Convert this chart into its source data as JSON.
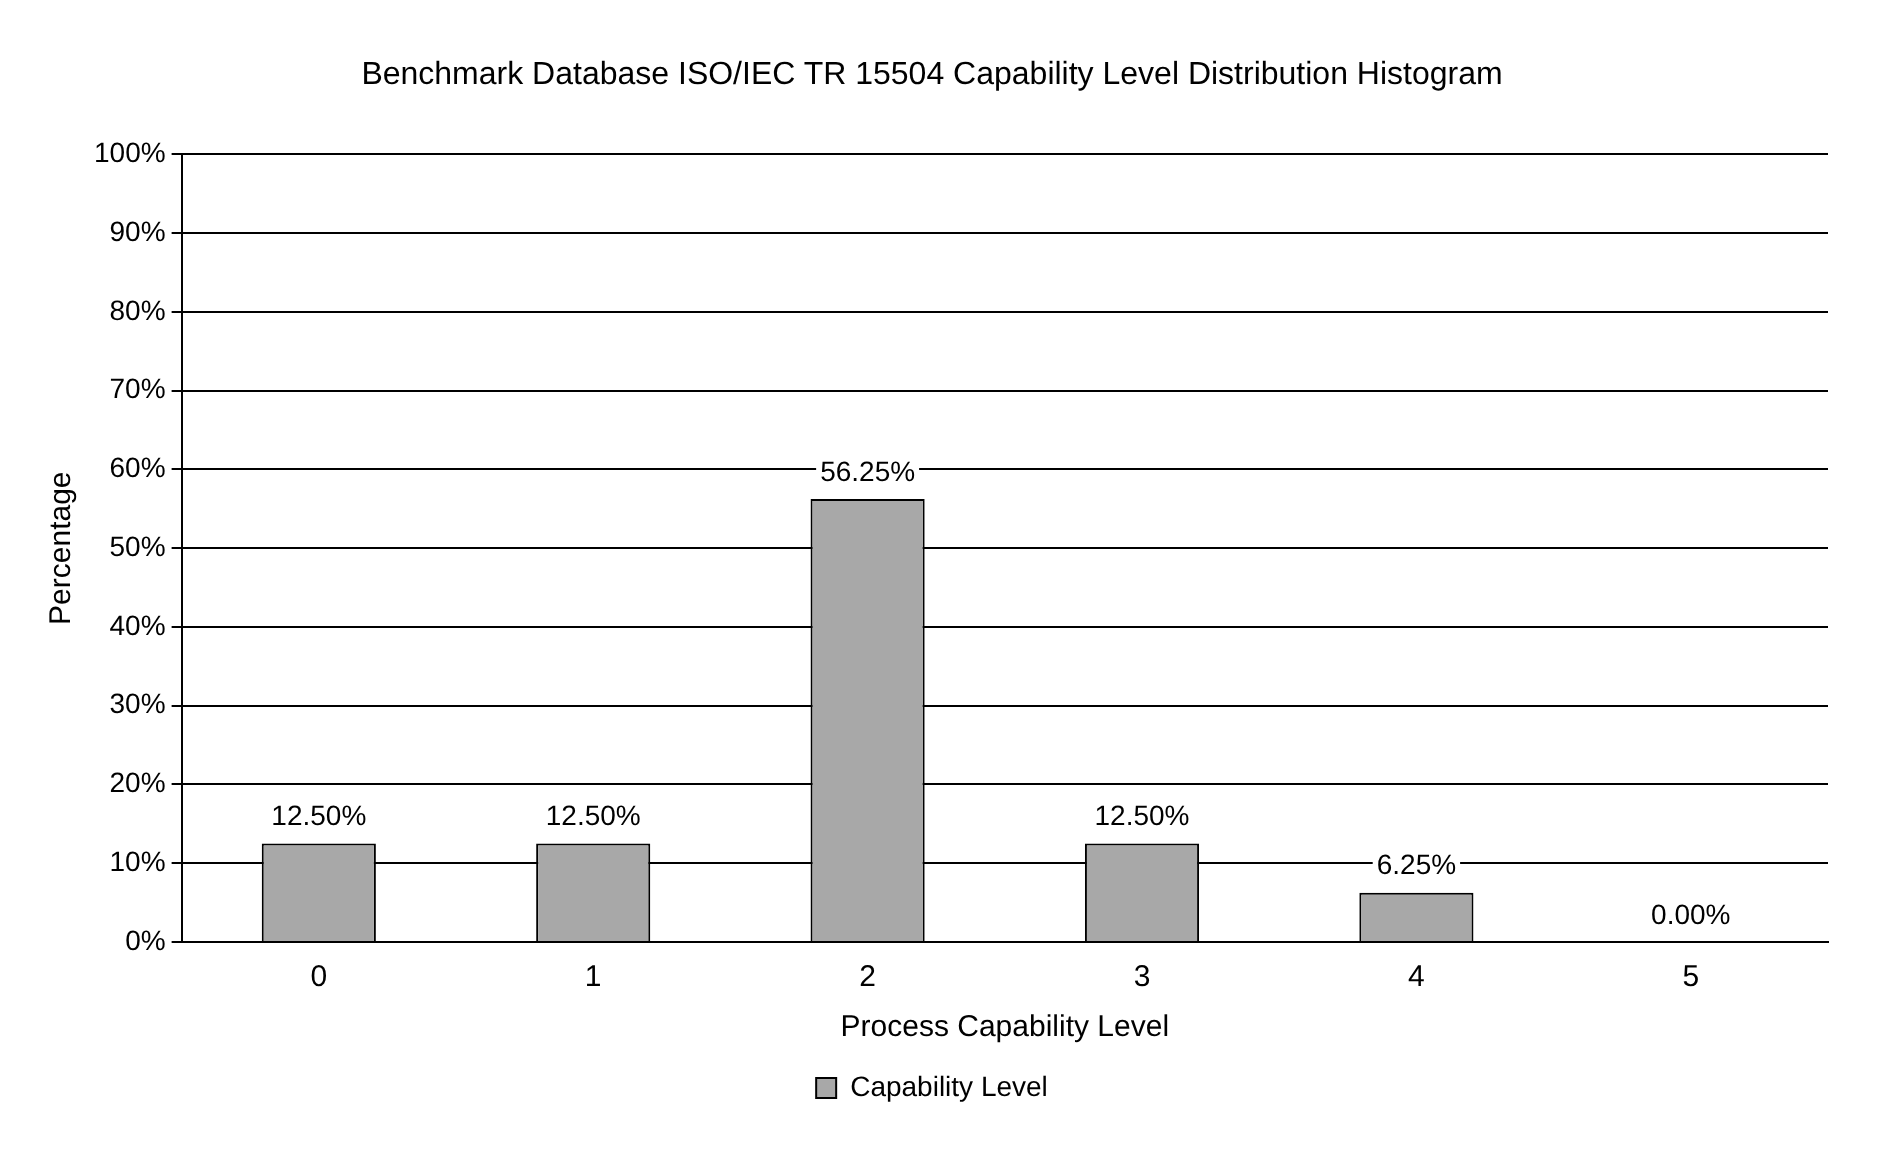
{
  "chart_data": {
    "type": "bar",
    "title": "Benchmark Database ISO/IEC TR 15504 Capability Level Distribution Histogram",
    "xlabel": "Process Capability Level",
    "ylabel": "Percentage",
    "categories": [
      "0",
      "1",
      "2",
      "3",
      "4",
      "5"
    ],
    "series": [
      {
        "name": "Capability Level",
        "color": "#a8a8a8",
        "values": [
          12.5,
          12.5,
          56.25,
          12.5,
          6.25,
          0
        ],
        "value_labels": [
          "12.50%",
          "12.50%",
          "56.25%",
          "12.50%",
          "6.25%",
          "0.00%"
        ]
      }
    ],
    "ylim": [
      0,
      100
    ],
    "yticks": [
      {
        "value": 0,
        "label": "0%"
      },
      {
        "value": 10,
        "label": "10%"
      },
      {
        "value": 20,
        "label": "20%"
      },
      {
        "value": 30,
        "label": "30%"
      },
      {
        "value": 40,
        "label": "40%"
      },
      {
        "value": 50,
        "label": "50%"
      },
      {
        "value": 60,
        "label": "60%"
      },
      {
        "value": 70,
        "label": "70%"
      },
      {
        "value": 80,
        "label": "80%"
      },
      {
        "value": 90,
        "label": "90%"
      },
      {
        "value": 100,
        "label": "100%"
      }
    ],
    "grid": "y",
    "legend": "bottom"
  }
}
